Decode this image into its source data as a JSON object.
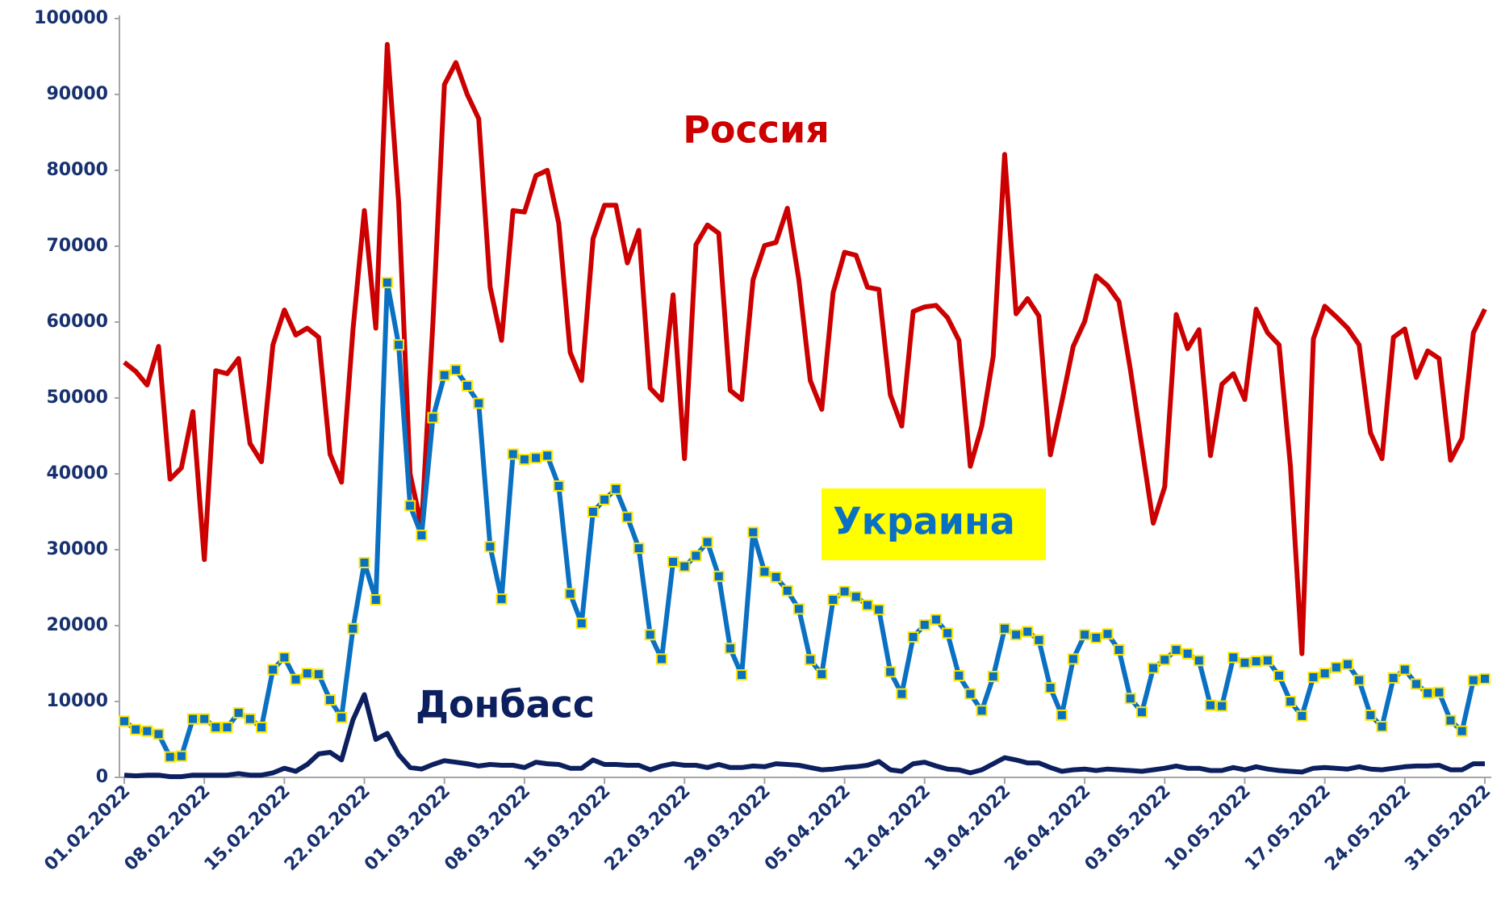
{
  "chart_data": {
    "type": "line",
    "categories": [
      "01.02.2022",
      null,
      null,
      null,
      null,
      null,
      null,
      "08.02.2022",
      null,
      null,
      null,
      null,
      null,
      null,
      "15.02.2022",
      null,
      null,
      null,
      null,
      null,
      null,
      "22.02.2022",
      null,
      null,
      null,
      null,
      null,
      null,
      "01.03.2022",
      null,
      null,
      null,
      null,
      null,
      null,
      "08.03.2022",
      null,
      null,
      null,
      null,
      null,
      null,
      "15.03.2022",
      null,
      null,
      null,
      null,
      null,
      null,
      "22.03.2022",
      null,
      null,
      null,
      null,
      null,
      null,
      "29.03.2022",
      null,
      null,
      null,
      null,
      null,
      null,
      "05.04.2022",
      null,
      null,
      null,
      null,
      null,
      null,
      "12.04.2022",
      null,
      null,
      null,
      null,
      null,
      null,
      "19.04.2022",
      null,
      null,
      null,
      null,
      null,
      null,
      "26.04.2022",
      null,
      null,
      null,
      null,
      null,
      null,
      "03.05.2022",
      null,
      null,
      null,
      null,
      null,
      null,
      "10.05.2022",
      null,
      null,
      null,
      null,
      null,
      null,
      "17.05.2022",
      null,
      null,
      null,
      null,
      null,
      null,
      "24.05.2022",
      null,
      null,
      null,
      null,
      null,
      null,
      "31.05.2022"
    ],
    "ylim": [
      0,
      100000
    ],
    "yticks": [
      0,
      10000,
      20000,
      30000,
      40000,
      50000,
      60000,
      70000,
      80000,
      90000,
      100000
    ],
    "grid": false,
    "series": [
      {
        "name": "Россия",
        "color": "#cc0000",
        "marker": "none",
        "values": [
          54700,
          53500,
          51700,
          56800,
          39300,
          40800,
          48200,
          28700,
          53600,
          53200,
          55200,
          44000,
          41600,
          57000,
          61600,
          58300,
          59200,
          58000,
          42600,
          38900,
          59000,
          74700,
          59200,
          96600,
          75800,
          40000,
          33000,
          60000,
          91300,
          94200,
          90000,
          86800,
          64600,
          57600,
          74700,
          74500,
          79300,
          80000,
          73000,
          56000,
          52300,
          71000,
          75400,
          75400,
          67800,
          72100,
          51300,
          49700,
          63600,
          42000,
          70200,
          72800,
          71700,
          51000,
          49800,
          65600,
          70100,
          70500,
          75000,
          65600,
          52300,
          48500,
          63900,
          69200,
          68800,
          64600,
          64300,
          50400,
          46300,
          61400,
          62000,
          62200,
          60600,
          57600,
          41000,
          46300,
          55500,
          82100,
          61100,
          63100,
          60800,
          42500,
          49500,
          56800,
          60100,
          66100,
          64800,
          62700,
          53700,
          43500,
          33500,
          38300,
          61000,
          56500,
          59000,
          42400,
          51800,
          53200,
          49800,
          61700,
          58600,
          57000,
          41000,
          16300,
          57800,
          62100,
          60700,
          59200,
          57000,
          45400,
          42000,
          58000,
          59100,
          52700,
          56200,
          55200,
          41800,
          44700,
          58600,
          61700
        ]
      },
      {
        "name": "Украина",
        "color": "#0a70c2",
        "marker": "square",
        "values": [
          7400,
          6300,
          6100,
          5700,
          2700,
          2800,
          7700,
          7700,
          6600,
          6600,
          8500,
          7700,
          6600,
          14200,
          15800,
          12900,
          13700,
          13600,
          10200,
          7900,
          19600,
          28300,
          23400,
          65200,
          57000,
          35800,
          31900,
          47400,
          53000,
          53700,
          51600,
          49300,
          30400,
          23500,
          42600,
          41900,
          42100,
          42400,
          38400,
          24200,
          20300,
          35000,
          36600,
          38000,
          34300,
          30200,
          18800,
          15600,
          28400,
          27800,
          29200,
          31000,
          26500,
          17000,
          13500,
          32300,
          27100,
          26400,
          24600,
          22200,
          15500,
          13600,
          23400,
          24500,
          23800,
          22700,
          22100,
          13900,
          11000,
          18500,
          20100,
          20800,
          19000,
          13400,
          11000,
          8800,
          13300,
          19600,
          18800,
          19200,
          18100,
          11800,
          8200,
          15600,
          18800,
          18400,
          18900,
          16800,
          10400,
          8600,
          14400,
          15500,
          16800,
          16300,
          15400,
          9500,
          9400,
          15800,
          15100,
          15300,
          15400,
          13400,
          10000,
          8100,
          13200,
          13700,
          14500,
          14900,
          12800,
          8200,
          6700,
          13100,
          14200,
          12300,
          11100,
          11200,
          7500,
          6100,
          12800,
          13000
        ]
      },
      {
        "name": "Донбасс",
        "color": "#0c1f5e",
        "marker": "none",
        "values": [
          300,
          200,
          300,
          300,
          100,
          100,
          300,
          300,
          300,
          300,
          500,
          300,
          300,
          600,
          1200,
          800,
          1700,
          3100,
          3300,
          2300,
          7600,
          10900,
          5000,
          5800,
          3000,
          1300,
          1100,
          1700,
          2200,
          2000,
          1800,
          1500,
          1700,
          1600,
          1600,
          1300,
          2000,
          1800,
          1700,
          1200,
          1200,
          2300,
          1700,
          1700,
          1600,
          1600,
          1000,
          1500,
          1800,
          1600,
          1600,
          1300,
          1700,
          1300,
          1300,
          1500,
          1400,
          1800,
          1700,
          1600,
          1300,
          1000,
          1100,
          1300,
          1400,
          1600,
          2100,
          1000,
          800,
          1800,
          2000,
          1500,
          1100,
          1000,
          600,
          1000,
          1800,
          2600,
          2300,
          1900,
          1900,
          1300,
          800,
          1000,
          1100,
          900,
          1100,
          1000,
          900,
          800,
          1000,
          1200,
          1500,
          1200,
          1200,
          900,
          900,
          1300,
          1000,
          1400,
          1100,
          900,
          800,
          700,
          1200,
          1300,
          1200,
          1100,
          1400,
          1100,
          1000,
          1200,
          1400,
          1500,
          1500,
          1600,
          1000,
          1000,
          1800,
          1800
        ]
      }
    ]
  }
}
